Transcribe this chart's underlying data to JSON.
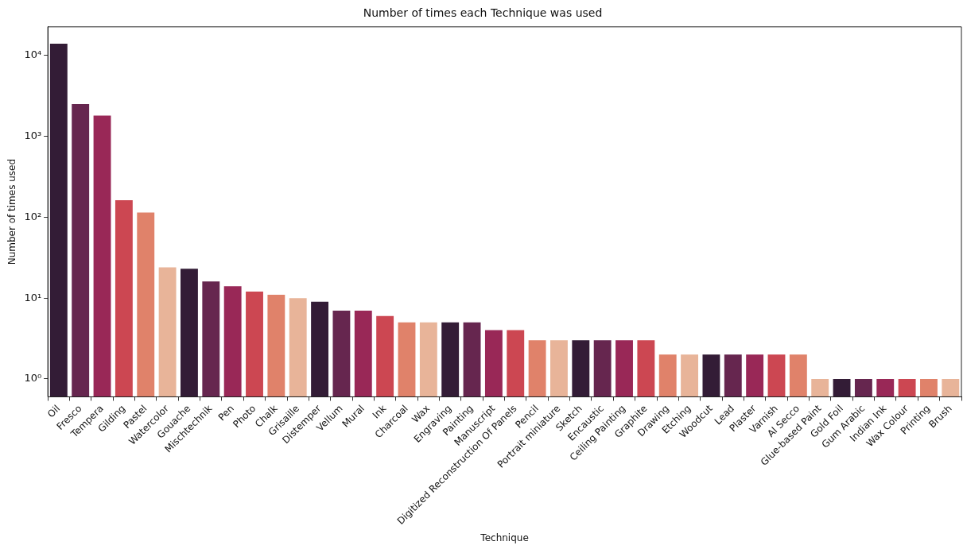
{
  "chart_data": {
    "type": "bar",
    "title": "Number of times each Technique was used",
    "xlabel": "Technique",
    "ylabel": "Number of times used",
    "categories": [
      "Oil",
      "Fresco",
      "Tempera",
      "Gilding",
      "Pastel",
      "Watercolor",
      "Gouache",
      "Mischtechnik",
      "Pen",
      "Photo",
      "Chalk",
      "Grisaille",
      "Distemper",
      "Vellum",
      "Mural",
      "Ink",
      "Charcoal",
      "Wax",
      "Engraving",
      "Painting",
      "Manuscript",
      "Digitized Reconstruction Of Panels",
      "Pencil",
      "Portrait miniature",
      "Sketch",
      "Encaustic",
      "Ceiling Painting",
      "Graphite",
      "Drawing",
      "Etching",
      "Woodcut",
      "Lead",
      "Plaster",
      "Varnish",
      "Al Secco",
      "Glue-based Paint",
      "Gold Foil",
      "Gum Arabic",
      "Indian Ink",
      "Wax Colour",
      "Printing",
      "Brush"
    ],
    "values": [
      14000,
      2500,
      1800,
      162,
      114,
      24,
      23,
      16,
      14,
      12,
      11,
      10,
      9,
      7,
      7,
      6,
      5,
      5,
      5,
      5,
      4,
      4,
      3,
      3,
      3,
      3,
      3,
      3,
      2,
      2,
      2,
      2,
      2,
      2,
      2,
      1,
      1,
      1,
      1,
      1,
      1,
      1
    ],
    "colors": [
      "#331c36",
      "#66264f",
      "#992857",
      "#cc4752",
      "#e0826a",
      "#e8b499",
      "#331c36",
      "#66264f",
      "#992857",
      "#cc4752",
      "#e0826a",
      "#e8b499",
      "#331c36",
      "#66264f",
      "#992857",
      "#cc4752",
      "#e0826a",
      "#e8b499",
      "#331c36",
      "#66264f",
      "#992857",
      "#cc4752",
      "#e0826a",
      "#e8b499",
      "#331c36",
      "#66264f",
      "#992857",
      "#cc4752",
      "#e0826a",
      "#e8b499",
      "#331c36",
      "#66264f",
      "#992857",
      "#cc4752",
      "#e0826a",
      "#e8b499",
      "#331c36",
      "#66264f",
      "#992857",
      "#cc4752",
      "#e0826a",
      "#e8b499"
    ],
    "log": true,
    "ylim": [
      0.63,
      22600
    ],
    "yticks": [
      {
        "value": 1,
        "label": "10⁰"
      },
      {
        "value": 10,
        "label": "10¹"
      },
      {
        "value": 100,
        "label": "10²"
      },
      {
        "value": 1000,
        "label": "10³"
      },
      {
        "value": 10000,
        "label": "10⁴"
      }
    ],
    "grid": false,
    "legend": false
  }
}
